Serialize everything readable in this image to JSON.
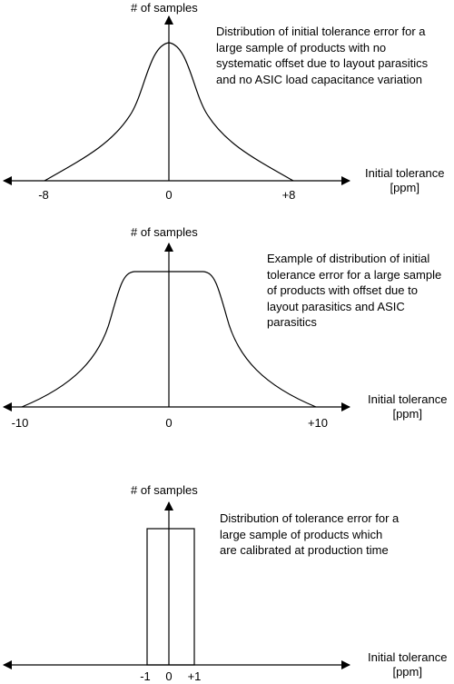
{
  "panels": [
    {
      "ylabel": "# of samples",
      "description": "Distribution of initial tolerance error for a large sample of products with no systematic offset due to layout parasitics and no ASIC load capacitance variation",
      "xlabel_line1": "Initial tolerance",
      "xlabel_line2": "[ppm]",
      "ticks": [
        "-8",
        "0",
        "+8"
      ]
    },
    {
      "ylabel": "# of samples",
      "description": "Example of distribution of initial tolerance error for a large sample of products with offset due to layout parasitics and ASIC parasitics",
      "xlabel_line1": "Initial tolerance",
      "xlabel_line2": "[ppm]",
      "ticks": [
        "-10",
        "0",
        "+10"
      ]
    },
    {
      "ylabel": "# of samples",
      "description": "Distribution of tolerance error for a large sample of products which are calibrated at production time",
      "xlabel_line1": "Initial tolerance",
      "xlabel_line2": "[ppm]",
      "ticks": [
        "-1",
        "0",
        "+1"
      ]
    }
  ]
}
